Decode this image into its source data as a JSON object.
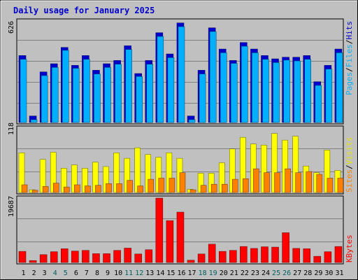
{
  "title": "Daily usage for January 2025",
  "colors": {
    "background": "#c0c0c0",
    "plot_bg": "#c0c0c0",
    "hits": "#0000cc",
    "files": "#00b0ff",
    "pages": "#00b0ff",
    "visits": "#ffff00",
    "sites": "#ff8000",
    "kbytes": "#ff0000",
    "weekend_day": "#006060",
    "weekday_day": "#000000",
    "title": "#0000cc"
  },
  "chart_data": [
    {
      "type": "bar",
      "panel": "top",
      "series": [
        {
          "name": "Hits",
          "values": [
            410,
            40,
            310,
            360,
            460,
            350,
            410,
            320,
            360,
            380,
            470,
            300,
            380,
            550,
            420,
            610,
            40,
            320,
            580,
            450,
            380,
            490,
            450,
            410,
            390,
            400,
            400,
            410,
            250,
            350,
            450
          ]
        },
        {
          "name": "Files",
          "values": [
            400,
            30,
            300,
            350,
            455,
            345,
            400,
            310,
            350,
            370,
            460,
            295,
            370,
            540,
            410,
            600,
            30,
            310,
            570,
            440,
            375,
            480,
            440,
            400,
            380,
            395,
            390,
            400,
            240,
            340,
            440
          ]
        },
        {
          "name": "Pages",
          "values": [
            400,
            30,
            300,
            350,
            455,
            345,
            400,
            310,
            350,
            370,
            460,
            295,
            370,
            540,
            410,
            600,
            30,
            310,
            570,
            440,
            375,
            480,
            440,
            400,
            380,
            395,
            390,
            400,
            240,
            340,
            440
          ]
        }
      ],
      "ymax_label": "626",
      "ymax": 626,
      "legend": [
        "Pages",
        "Files",
        "Hits"
      ],
      "legend_seps": [
        "/",
        "/"
      ]
    },
    {
      "type": "bar",
      "panel": "middle",
      "series": [
        {
          "name": "Visits",
          "values": [
            72,
            5,
            60,
            73,
            44,
            50,
            44,
            55,
            47,
            72,
            62,
            81,
            69,
            64,
            72,
            62,
            6,
            35,
            35,
            54,
            79,
            100,
            88,
            86,
            107,
            95,
            102,
            48,
            36,
            77,
            40
          ]
        },
        {
          "name": "Sites",
          "values": [
            14,
            4,
            11,
            17,
            10,
            14,
            12,
            13,
            16,
            16,
            22,
            12,
            24,
            26,
            26,
            36,
            5,
            13,
            15,
            15,
            24,
            25,
            43,
            36,
            36,
            43,
            36,
            38,
            33,
            26,
            26
          ]
        }
      ],
      "ymax_label": "118",
      "ymax": 118,
      "legend": [
        "Sites",
        "Visits"
      ],
      "legend_seps": [
        "/"
      ]
    },
    {
      "type": "bar",
      "panel": "bottom",
      "series": [
        {
          "name": "KBytes",
          "values": [
            3400,
            600,
            2400,
            3300,
            4200,
            3500,
            3700,
            2700,
            2700,
            3700,
            4400,
            2600,
            3900,
            19687,
            12800,
            15400,
            700,
            2600,
            5600,
            3400,
            3700,
            4900,
            4300,
            4800,
            4700,
            9100,
            4300,
            4200,
            1900,
            3300,
            4900
          ]
        }
      ],
      "ymax_label": "19687",
      "ymax": 19687,
      "legend": [
        "KBytes"
      ]
    }
  ],
  "days": [
    "1",
    "2",
    "3",
    "4",
    "5",
    "6",
    "7",
    "8",
    "9",
    "10",
    "11",
    "12",
    "13",
    "14",
    "15",
    "16",
    "17",
    "18",
    "19",
    "20",
    "21",
    "22",
    "23",
    "24",
    "25",
    "26",
    "27",
    "28",
    "29",
    "30",
    "31"
  ],
  "weekend_days": [
    4,
    5,
    11,
    12,
    18,
    19,
    25,
    26
  ]
}
